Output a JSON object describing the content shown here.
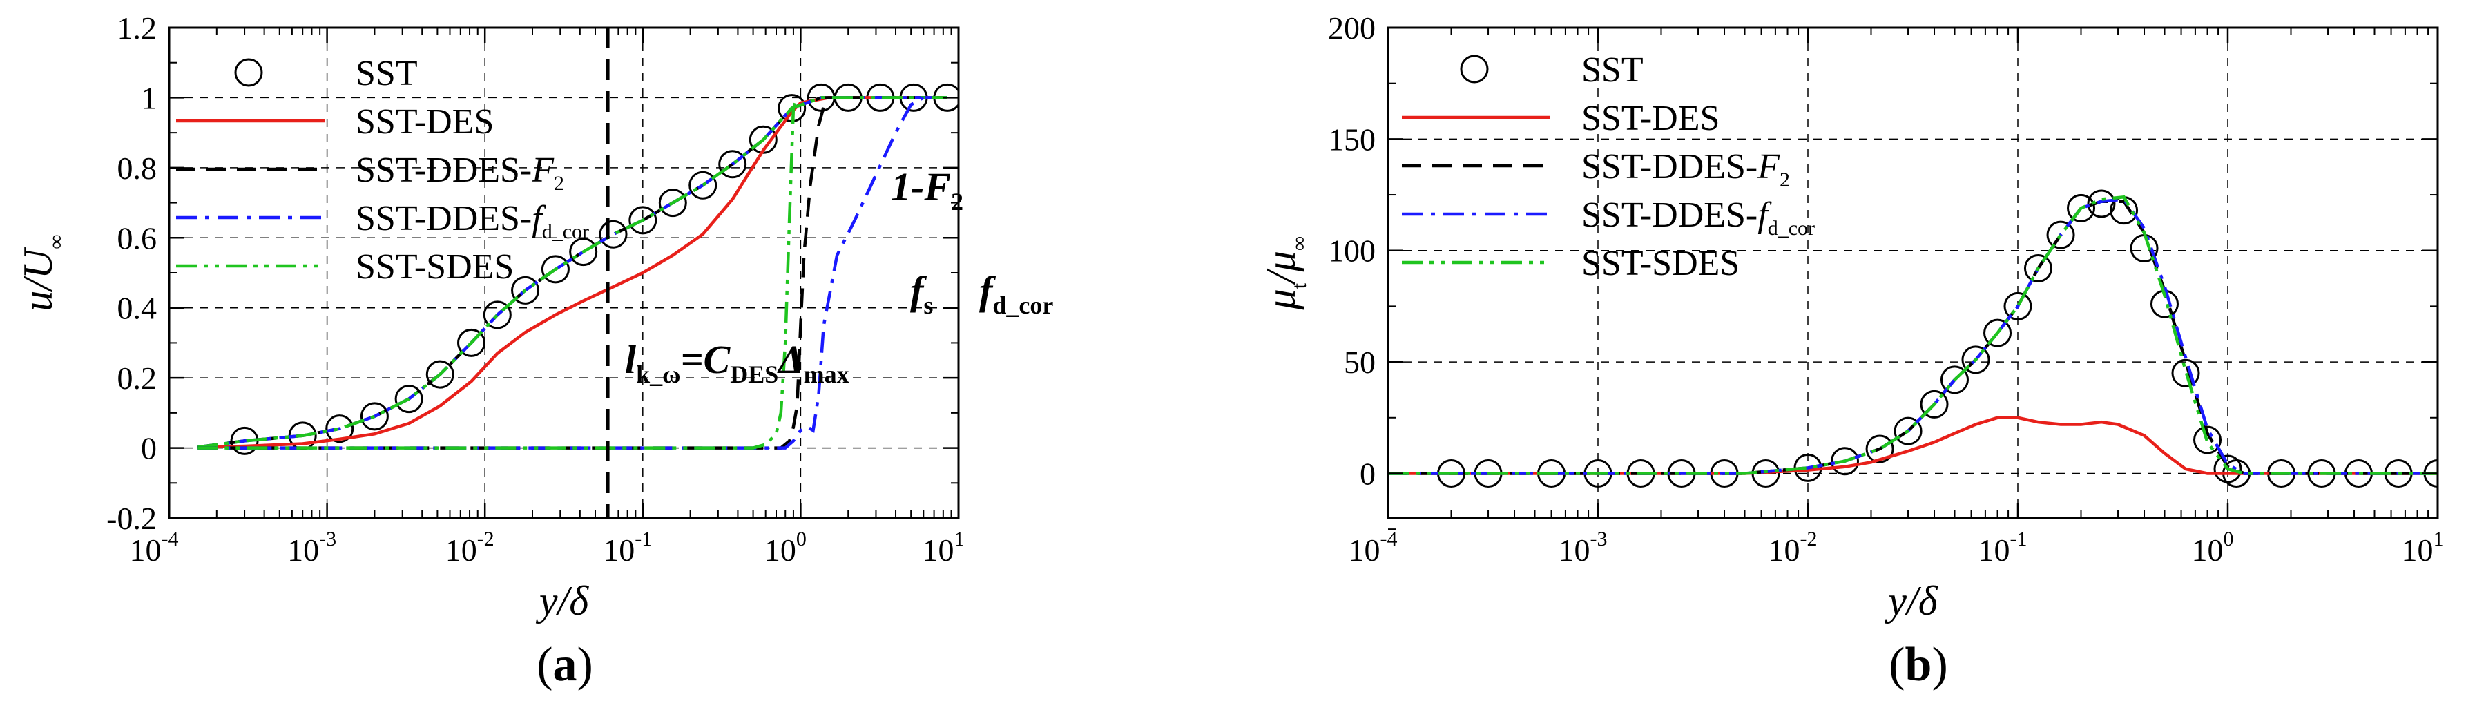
{
  "chart_data": [
    {
      "type": "line",
      "panel_label": "(a)",
      "x_scale": "log",
      "xlim": [
        0.0001,
        10
      ],
      "ylim": [
        -0.2,
        1.2
      ],
      "xlabel": "y/δ",
      "ylabel": "u/U∞",
      "x_ticks": [
        {
          "base": "10",
          "exp": "-4"
        },
        {
          "base": "10",
          "exp": "-3"
        },
        {
          "base": "10",
          "exp": "-2"
        },
        {
          "base": "10",
          "exp": "-1"
        },
        {
          "base": "10",
          "exp": "0"
        },
        {
          "base": "10",
          "exp": "1"
        }
      ],
      "y_ticks": [
        "-0.2",
        "0",
        "0.2",
        "0.4",
        "0.6",
        "0.8",
        "1",
        "1.2"
      ],
      "grid": true,
      "legend_position": "top-left",
      "annotations": {
        "vline_x": 0.06,
        "lkw_text": "l",
        "lkw_sub": "k_ω",
        "lkw_eq": "=C",
        "lkw_sub2": "DES",
        "lkw_tail": "Δ",
        "lkw_sub3": "max",
        "f2_text": "1-F",
        "f2_sub": "2",
        "fs_text": "f",
        "fs_sub": "s",
        "fd_text": "f",
        "fd_sub": "d_cor"
      },
      "series": [
        {
          "name": "SST",
          "style": "circles",
          "color": "#000000",
          "x": [
            0.0003,
            0.0007,
            0.0012,
            0.002,
            0.0033,
            0.0052,
            0.0082,
            0.012,
            0.018,
            0.028,
            0.042,
            0.065,
            0.1,
            0.155,
            0.24,
            0.37,
            0.58,
            0.88,
            1.35,
            2.0,
            3.2,
            5.2,
            8.5
          ],
          "y": [
            0.02,
            0.035,
            0.055,
            0.09,
            0.14,
            0.21,
            0.3,
            0.38,
            0.45,
            0.51,
            0.56,
            0.61,
            0.65,
            0.7,
            0.75,
            0.81,
            0.88,
            0.97,
            1.0,
            1.0,
            1.0,
            1.0,
            1.0
          ]
        },
        {
          "name": "SST-DES",
          "style": "solid",
          "color": "#e8201a",
          "x": [
            0.00015,
            0.0003,
            0.0007,
            0.0012,
            0.002,
            0.0033,
            0.0052,
            0.0082,
            0.012,
            0.018,
            0.028,
            0.042,
            0.065,
            0.1,
            0.155,
            0.24,
            0.37,
            0.58,
            0.88,
            1.0,
            1.5,
            3,
            8.5
          ],
          "y": [
            0.002,
            0.005,
            0.012,
            0.025,
            0.04,
            0.07,
            0.12,
            0.19,
            0.27,
            0.33,
            0.38,
            0.42,
            0.46,
            0.5,
            0.55,
            0.61,
            0.71,
            0.85,
            0.96,
            0.985,
            1.0,
            1.0,
            1.0
          ]
        },
        {
          "name": "SST-DDES-F2",
          "label_main": "SST-DDES-",
          "label_italic": "F",
          "label_sub": "2",
          "style": "dashed",
          "color": "#000000",
          "x": [
            0.00015,
            0.0003,
            0.0007,
            0.0012,
            0.002,
            0.0033,
            0.0052,
            0.0082,
            0.012,
            0.018,
            0.028,
            0.042,
            0.065,
            0.1,
            0.155,
            0.24,
            0.37,
            0.58,
            0.88,
            1.35,
            2.0,
            3.2,
            5.2,
            8.5
          ],
          "y": [
            0.002,
            0.02,
            0.035,
            0.055,
            0.09,
            0.14,
            0.21,
            0.3,
            0.38,
            0.45,
            0.51,
            0.56,
            0.61,
            0.65,
            0.7,
            0.75,
            0.81,
            0.88,
            0.97,
            1.0,
            1.0,
            1.0,
            1.0,
            1.0
          ]
        },
        {
          "name": "SST-DDES-fd_cor",
          "label_main": "SST-DDES-",
          "label_italic": "f",
          "label_sub": "d_cor",
          "style": "dashdot",
          "color": "#1a1aff",
          "x": [
            0.00015,
            0.0003,
            0.0007,
            0.0012,
            0.002,
            0.0033,
            0.0052,
            0.0082,
            0.012,
            0.018,
            0.028,
            0.042,
            0.065,
            0.1,
            0.155,
            0.24,
            0.37,
            0.58,
            0.88,
            1.35,
            2.0,
            3.2,
            5.2,
            8.5
          ],
          "y": [
            0.002,
            0.02,
            0.035,
            0.055,
            0.09,
            0.14,
            0.21,
            0.3,
            0.38,
            0.45,
            0.51,
            0.56,
            0.61,
            0.65,
            0.7,
            0.75,
            0.81,
            0.88,
            0.97,
            1.0,
            1.0,
            1.0,
            1.0,
            1.0
          ]
        },
        {
          "name": "SST-SDES",
          "style": "dashdotdot",
          "color": "#1fc41f",
          "x": [
            0.00015,
            0.0003,
            0.0007,
            0.0012,
            0.002,
            0.0033,
            0.0052,
            0.0082,
            0.012,
            0.018,
            0.028,
            0.042,
            0.065,
            0.1,
            0.155,
            0.24,
            0.37,
            0.58,
            0.88,
            1.35,
            2.0,
            3.2,
            5.2,
            8.5
          ],
          "y": [
            0.002,
            0.02,
            0.035,
            0.055,
            0.09,
            0.14,
            0.21,
            0.3,
            0.38,
            0.45,
            0.51,
            0.56,
            0.61,
            0.65,
            0.7,
            0.75,
            0.81,
            0.88,
            0.97,
            1.0,
            1.0,
            1.0,
            1.0,
            1.0
          ]
        },
        {
          "name": "1-F2",
          "style": "dashed",
          "color": "#000000",
          "unlabeled": true,
          "x": [
            0.00015,
            0.5,
            0.75,
            0.85,
            0.9,
            0.95,
            1.0,
            1.05,
            1.15,
            1.3,
            1.45
          ],
          "y": [
            0,
            0,
            0.0,
            0.02,
            0.06,
            0.12,
            0.35,
            0.55,
            0.75,
            0.92,
            1.0
          ]
        },
        {
          "name": "fd_cor",
          "style": "dashdot",
          "color": "#1a1aff",
          "unlabeled": true,
          "x": [
            0.00015,
            0.5,
            0.8,
            0.9,
            1.0,
            1.1,
            1.2,
            1.3,
            1.4,
            1.7,
            2.2,
            3.0,
            4.0,
            5.0,
            6.0
          ],
          "y": [
            0,
            0,
            0,
            0.02,
            0.05,
            0.06,
            0.05,
            0.15,
            0.35,
            0.55,
            0.65,
            0.78,
            0.9,
            0.98,
            1.0
          ]
        },
        {
          "name": "fs",
          "style": "dashdotdot",
          "color": "#1fc41f",
          "unlabeled": true,
          "x": [
            0.00015,
            0.5,
            0.6,
            0.7,
            0.75,
            0.8,
            0.85,
            0.9,
            0.95
          ],
          "y": [
            0,
            0,
            0.01,
            0.04,
            0.1,
            0.3,
            0.66,
            0.97,
            1.0
          ]
        }
      ]
    },
    {
      "type": "line",
      "panel_label": "(b)",
      "x_scale": "log",
      "xlim": [
        0.0001,
        10
      ],
      "ylim": [
        -20,
        200
      ],
      "xlabel": "y/δ",
      "ylabel": "μt/μ∞",
      "ylabel_main": "μ",
      "ylabel_sub": "t",
      "ylabel_slash": "/μ",
      "ylabel_sub2": "∞",
      "x_ticks": [
        {
          "base": "10",
          "exp": "-4"
        },
        {
          "base": "10",
          "exp": "-3"
        },
        {
          "base": "10",
          "exp": "-2"
        },
        {
          "base": "10",
          "exp": "-1"
        },
        {
          "base": "10",
          "exp": "0"
        },
        {
          "base": "10",
          "exp": "1"
        }
      ],
      "y_ticks": [
        "0",
        "50",
        "100",
        "150",
        "200"
      ],
      "grid": true,
      "legend_position": "top-left",
      "series": [
        {
          "name": "SST",
          "style": "circles",
          "color": "#000000",
          "x": [
            0.0002,
            0.0003,
            0.0006,
            0.001,
            0.0016,
            0.0025,
            0.004,
            0.0063,
            0.01,
            0.015,
            0.022,
            0.03,
            0.04,
            0.05,
            0.063,
            0.08,
            0.1,
            0.125,
            0.16,
            0.2,
            0.25,
            0.32,
            0.4,
            0.5,
            0.63,
            0.8,
            1.0,
            1.1,
            1.8,
            2.8,
            4.2,
            6.5,
            10
          ],
          "y": [
            0,
            0,
            0,
            0,
            0,
            0,
            0,
            0,
            2.5,
            5.5,
            11,
            19,
            31,
            42,
            51,
            63,
            75,
            92,
            107,
            119,
            121,
            118,
            101,
            76,
            45,
            15,
            2,
            0,
            0,
            0,
            0,
            0,
            0
          ]
        },
        {
          "name": "SST-DES",
          "style": "solid",
          "color": "#e8201a",
          "x": [
            0.0001,
            0.005,
            0.01,
            0.015,
            0.02,
            0.03,
            0.04,
            0.05,
            0.063,
            0.08,
            0.1,
            0.125,
            0.16,
            0.2,
            0.25,
            0.3,
            0.4,
            0.5,
            0.63,
            0.8,
            1.0,
            10
          ],
          "y": [
            0,
            0,
            1.5,
            3,
            5,
            10,
            14,
            18,
            22,
            25,
            25,
            23,
            22,
            22,
            23,
            22,
            17,
            9,
            2,
            0,
            0,
            0
          ]
        },
        {
          "name": "SST-DDES-F2",
          "label_main": "SST-DDES-",
          "label_italic": "F",
          "label_sub": "2",
          "style": "dashed",
          "color": "#000000",
          "x": [
            0.0001,
            0.005,
            0.01,
            0.015,
            0.022,
            0.03,
            0.04,
            0.05,
            0.063,
            0.08,
            0.1,
            0.125,
            0.16,
            0.2,
            0.25,
            0.32,
            0.4,
            0.5,
            0.63,
            0.8,
            1.0,
            1.2,
            10
          ],
          "y": [
            0,
            0,
            2.5,
            5.5,
            11,
            19,
            31,
            42,
            51,
            63,
            75,
            92,
            107,
            119,
            122,
            122,
            108,
            82,
            50,
            18,
            3,
            0,
            0
          ]
        },
        {
          "name": "SST-DDES-fd_cor",
          "label_main": "SST-DDES-",
          "label_italic": "f",
          "label_sub": "d_cor",
          "style": "dashdot",
          "color": "#1a1aff",
          "x": [
            0.0001,
            0.005,
            0.01,
            0.015,
            0.022,
            0.03,
            0.04,
            0.05,
            0.063,
            0.08,
            0.1,
            0.125,
            0.16,
            0.2,
            0.25,
            0.32,
            0.4,
            0.5,
            0.63,
            0.8,
            1.0,
            1.2,
            10
          ],
          "y": [
            0,
            0,
            2.5,
            5.5,
            11,
            19,
            31,
            42,
            51,
            63,
            75,
            92,
            107,
            119,
            122,
            123,
            110,
            84,
            52,
            20,
            4,
            0,
            0
          ]
        },
        {
          "name": "SST-SDES",
          "style": "dashdotdot",
          "color": "#1fc41f",
          "x": [
            0.0001,
            0.005,
            0.01,
            0.015,
            0.022,
            0.03,
            0.04,
            0.05,
            0.063,
            0.08,
            0.1,
            0.125,
            0.16,
            0.2,
            0.25,
            0.32,
            0.4,
            0.5,
            0.63,
            0.8,
            1.0,
            1.2,
            10
          ],
          "y": [
            0,
            0,
            2.5,
            5.5,
            11,
            19,
            31,
            42,
            51,
            63,
            75,
            92,
            107,
            119,
            123,
            124,
            108,
            80,
            46,
            14,
            2,
            0,
            0
          ]
        }
      ]
    }
  ]
}
